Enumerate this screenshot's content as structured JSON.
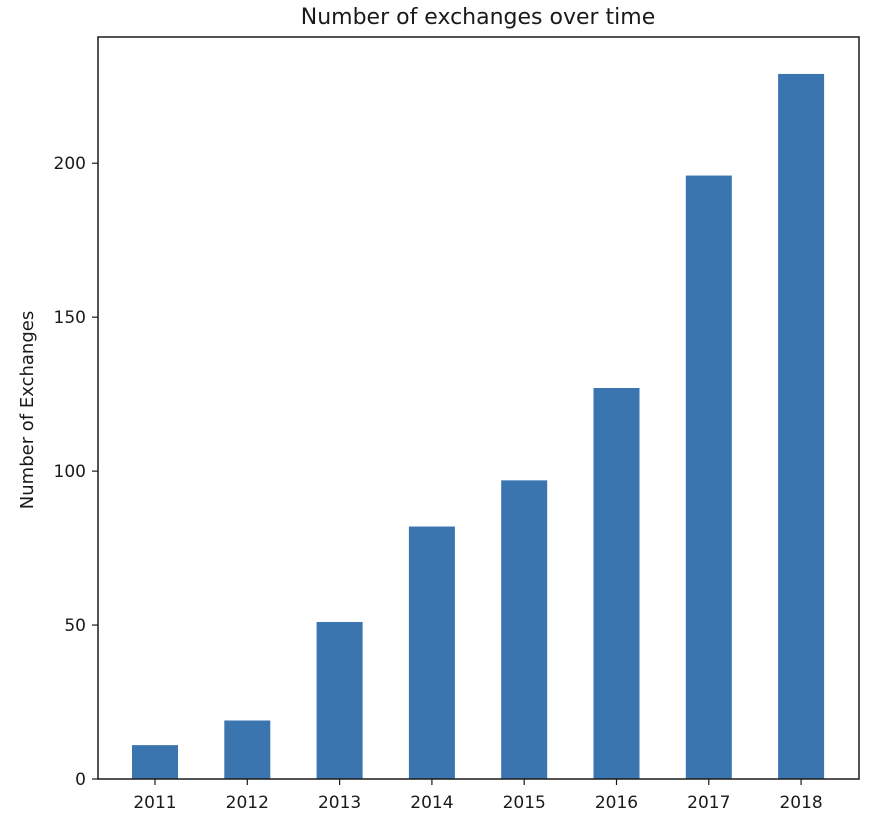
{
  "colors": {
    "bar": "#3a75b0",
    "frame": "#1a1a1a",
    "background": "#ffffff"
  },
  "chart_data": {
    "type": "bar",
    "title": "Number of exchanges over time",
    "xlabel": "",
    "ylabel": "Number of Exchanges",
    "categories": [
      "2011",
      "2012",
      "2013",
      "2014",
      "2015",
      "2016",
      "2017",
      "2018"
    ],
    "values": [
      11,
      19,
      51,
      82,
      97,
      127,
      196,
      229
    ],
    "ylim": [
      0,
      241
    ],
    "yticks": [
      0,
      50,
      100,
      150,
      200
    ],
    "grid": false,
    "legend": "none"
  }
}
